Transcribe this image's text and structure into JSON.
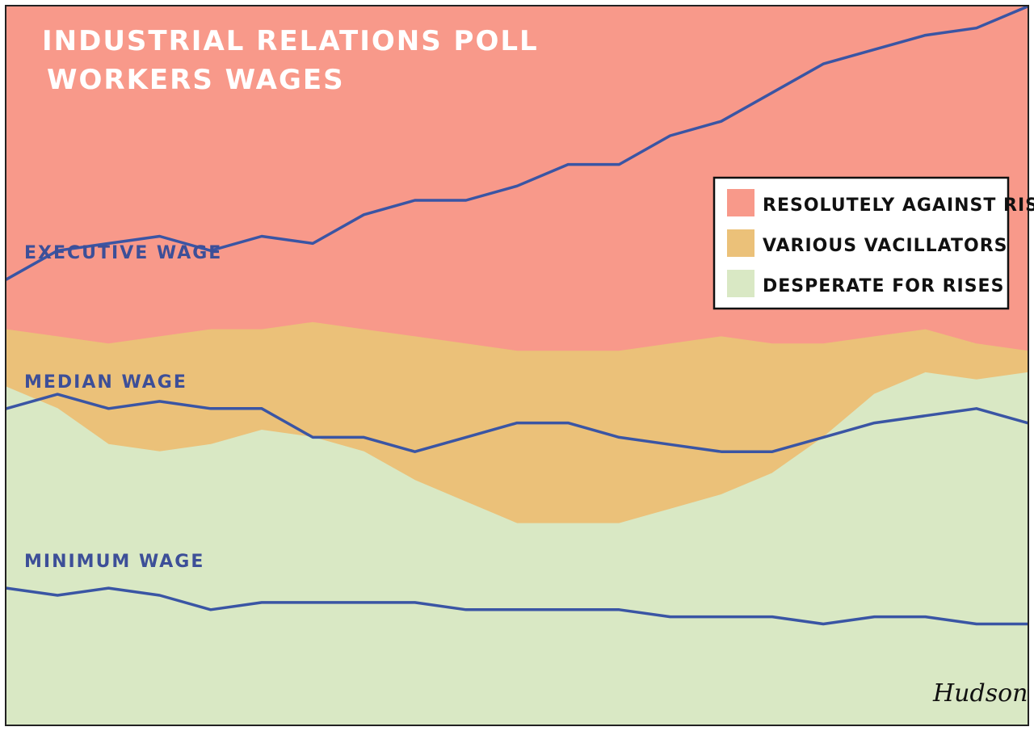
{
  "title": "INDUSTRIAL RELATIONS POLL",
  "subtitle": "WORKERS WAGES",
  "signature": "Hudson",
  "colors": {
    "against": "#f8998a",
    "vacillators": "#ebc179",
    "desperate": "#d9e8c4",
    "wage_line": "#3a55a4",
    "label_text": "#3d4f98",
    "title_text": "#ffffff"
  },
  "legend": {
    "placement": "top-right",
    "items": [
      {
        "label": "RESOLUTELY AGAINST RISES",
        "color": "#f8998a"
      },
      {
        "label": "VARIOUS VACILLATORS",
        "color": "#ebc179"
      },
      {
        "label": "DESPERATE FOR RISES",
        "color": "#d9e8c4"
      }
    ]
  },
  "chart_data": {
    "type": "area",
    "title": "INDUSTRIAL RELATIONS POLL",
    "subtitle": "WORKERS WAGES",
    "xlabel": "",
    "ylabel": "",
    "grid": false,
    "x": [
      0,
      1,
      2,
      3,
      4,
      5,
      6,
      7,
      8,
      9,
      10,
      11,
      12,
      13,
      14,
      15,
      16,
      17,
      18,
      19,
      20
    ],
    "series": [
      {
        "name": "RESOLUTELY AGAINST RISES",
        "values": [
          45,
          46,
          47,
          46,
          45,
          45,
          44,
          45,
          46,
          47,
          48,
          48,
          48,
          47,
          46,
          47,
          47,
          46,
          45,
          47,
          48
        ]
      },
      {
        "name": "VARIOUS VACILLATORS",
        "values": [
          8,
          10,
          14,
          16,
          16,
          14,
          16,
          17,
          20,
          22,
          24,
          24,
          24,
          23,
          22,
          18,
          13,
          8,
          6,
          5,
          3
        ]
      },
      {
        "name": "DESPERATE FOR RISES",
        "values": [
          47,
          44,
          39,
          38,
          39,
          41,
          40,
          38,
          34,
          31,
          28,
          28,
          28,
          30,
          32,
          35,
          40,
          46,
          49,
          48,
          49
        ]
      }
    ],
    "lines": [
      {
        "name": "EXECUTIVE WAGE",
        "values": [
          62,
          66,
          67,
          68,
          66,
          68,
          67,
          71,
          73,
          73,
          75,
          78,
          78,
          82,
          84,
          88,
          92,
          94,
          96,
          97,
          100
        ]
      },
      {
        "name": "MEDIAN WAGE",
        "values": [
          44,
          46,
          44,
          45,
          44,
          44,
          40,
          40,
          38,
          40,
          42,
          42,
          40,
          39,
          38,
          38,
          40,
          42,
          43,
          44,
          42
        ]
      },
      {
        "name": "MINIMUM WAGE",
        "values": [
          19,
          18,
          19,
          18,
          16,
          17,
          17,
          17,
          17,
          16,
          16,
          16,
          16,
          15,
          15,
          15,
          14,
          15,
          15,
          14,
          14
        ]
      }
    ],
    "ylim": [
      0,
      100
    ]
  }
}
